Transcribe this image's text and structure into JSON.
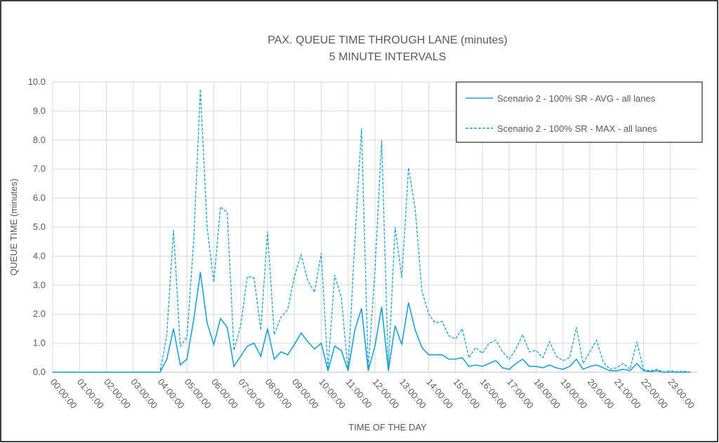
{
  "chart_data": {
    "type": "line",
    "title": "PAX. QUEUE TIME THROUGH LANE (minutes)",
    "subtitle": "5 MINUTE INTERVALS",
    "x_label": "TIME OF THE DAY",
    "y_label": "QUEUE TIME (minutes)",
    "categories": [
      "00:00:00",
      null,
      null,
      null,
      "01:00:00",
      null,
      null,
      null,
      "02:00:00",
      null,
      null,
      null,
      "03:00:00",
      null,
      null,
      null,
      "04:00:00",
      null,
      null,
      null,
      "05:00:00",
      null,
      null,
      null,
      "06:00:00",
      null,
      null,
      null,
      "07:00:00",
      null,
      null,
      null,
      "08:00:00",
      null,
      null,
      null,
      "09:00:00",
      null,
      null,
      null,
      "10:00:00",
      null,
      null,
      null,
      "11:00:00",
      null,
      null,
      null,
      "12:00:00",
      null,
      null,
      null,
      "13:00:00",
      null,
      null,
      null,
      "14:00:00",
      null,
      null,
      null,
      "15:00:00",
      null,
      null,
      null,
      "16:00:00",
      null,
      null,
      null,
      "17:00:00",
      null,
      null,
      null,
      "18:00:00",
      null,
      null,
      null,
      "19:00:00",
      null,
      null,
      null,
      "20:00:00",
      null,
      null,
      null,
      "21:00:00",
      null,
      null,
      null,
      "22:00:00",
      null,
      null,
      null,
      "23:00:00",
      null,
      null,
      null
    ],
    "series": [
      {
        "name": "Scenario 2 - 100% SR - AVG - all lanes",
        "color": "#1ba1d6",
        "linestyle": "solid",
        "values": [
          0,
          0,
          0,
          0,
          0,
          0,
          0,
          0,
          0,
          0,
          0,
          0,
          0,
          0,
          0,
          0,
          0,
          0.45,
          1.5,
          0.25,
          0.45,
          1.8,
          3.45,
          1.7,
          0.95,
          1.85,
          1.55,
          0.2,
          0.55,
          0.9,
          1.0,
          0.55,
          1.5,
          0.45,
          0.7,
          0.6,
          0.95,
          1.35,
          1.05,
          0.8,
          1.0,
          0.05,
          0.9,
          0.75,
          0.05,
          1.45,
          2.2,
          0.05,
          0.9,
          2.25,
          0.05,
          1.6,
          0.95,
          2.4,
          1.45,
          0.85,
          0.6,
          0.6,
          0.6,
          0.45,
          0.45,
          0.5,
          0.2,
          0.25,
          0.2,
          0.3,
          0.4,
          0.15,
          0.1,
          0.3,
          0.45,
          0.2,
          0.2,
          0.15,
          0.25,
          0.15,
          0.1,
          0.2,
          0.45,
          0.1,
          0.2,
          0.25,
          0.15,
          0.05,
          0.05,
          0.1,
          0.05,
          0.3,
          0.05,
          0.02,
          0.05,
          0,
          0,
          0,
          0,
          0
        ]
      },
      {
        "name": "Scenario 2 - 100% SR - MAX - all lanes",
        "color": "#1ba1d6",
        "linestyle": "dashed",
        "values": [
          0,
          0,
          0,
          0,
          0,
          0,
          0,
          0,
          0,
          0,
          0,
          0,
          0,
          0,
          0,
          0,
          0,
          1.3,
          4.9,
          0.9,
          1.2,
          4.5,
          9.75,
          5.0,
          3.1,
          5.7,
          5.5,
          0.75,
          1.6,
          3.3,
          3.25,
          1.45,
          4.85,
          1.3,
          1.9,
          2.15,
          3.3,
          4.05,
          3.15,
          2.75,
          4.1,
          0.1,
          3.35,
          2.55,
          0.05,
          4.5,
          8.4,
          0.1,
          3.5,
          8.0,
          0.1,
          5.0,
          3.25,
          7.05,
          5.6,
          2.8,
          2.0,
          1.7,
          1.75,
          1.25,
          1.15,
          1.5,
          0.5,
          0.85,
          0.65,
          1.0,
          1.1,
          0.7,
          0.45,
          0.8,
          1.3,
          0.7,
          0.75,
          0.5,
          1.05,
          0.55,
          0.4,
          0.5,
          1.55,
          0.3,
          0.7,
          1.1,
          0.35,
          0.1,
          0.15,
          0.3,
          0.1,
          1.05,
          0.1,
          0.05,
          0.1,
          0,
          0.05,
          0.02,
          0.03,
          0
        ]
      }
    ],
    "ylim": [
      0,
      10
    ],
    "yticks": [
      {
        "value": 0,
        "label": "0.0"
      },
      {
        "value": 1,
        "label": "1.0"
      },
      {
        "value": 2,
        "label": "2.0"
      },
      {
        "value": 3,
        "label": "3.0"
      },
      {
        "value": 4,
        "label": "4.0"
      },
      {
        "value": 5,
        "label": "5.0"
      },
      {
        "value": 6,
        "label": "6.0"
      },
      {
        "value": 7,
        "label": "7.0"
      },
      {
        "value": 8,
        "label": "8.0"
      },
      {
        "value": 9,
        "label": "9.0"
      },
      {
        "value": 10,
        "label": "10.0"
      }
    ],
    "grid": true,
    "legend": "upper right"
  }
}
